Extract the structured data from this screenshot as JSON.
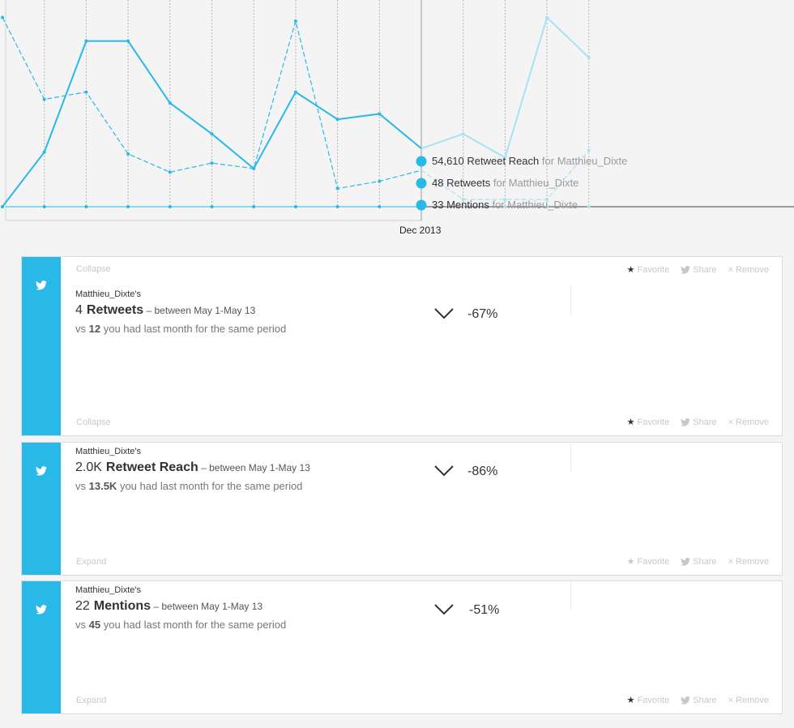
{
  "chart": {
    "x_label": "Dec 2013",
    "tooltip": [
      {
        "value": "54,610",
        "metric": "Retweet Reach",
        "for_text": "for Matthieu_Dixte"
      },
      {
        "value": "48",
        "metric": "Retweets",
        "for_text": "for Matthieu_Dixte"
      },
      {
        "value": "33",
        "metric": "Mentions",
        "for_text": "for Matthieu_Dixte"
      }
    ],
    "colors": {
      "line": "#29b9e8",
      "faded": "#a6e2f5",
      "axis": "#444444",
      "grid": "#b5b5b5"
    }
  },
  "chart_data": {
    "type": "line",
    "x_index": [
      0,
      1,
      2,
      3,
      4,
      5,
      6,
      7,
      8,
      9,
      10,
      11,
      12,
      13,
      14
    ],
    "highlight_index": 10,
    "series": [
      {
        "style": "solid",
        "values": [
          0,
          30,
          91,
          91,
          57,
          40,
          21,
          63,
          48,
          51,
          32,
          40,
          27,
          104,
          82
        ]
      },
      {
        "style": "dashed",
        "values": [
          104,
          59,
          63,
          29,
          19,
          24,
          21,
          102,
          10,
          14,
          20,
          4,
          4,
          4,
          31
        ]
      },
      {
        "style": "flat",
        "values": [
          0,
          0,
          0,
          0,
          0,
          0,
          0,
          0,
          0,
          0,
          0,
          0,
          0,
          0,
          0
        ]
      }
    ],
    "ylim": [
      0,
      110
    ]
  },
  "cards": [
    {
      "top_link": "Collapse",
      "bottom_link": "Collapse",
      "owner": "Matthieu_Dixte's",
      "value": "4",
      "metric": "Retweets",
      "range": "– between May 1-May 13",
      "vs_prefix": "vs",
      "vs_value": "12",
      "vs_suffix": "you had last month for the same period",
      "change": "-67%",
      "actions": {
        "favorite": "Favorite",
        "share": "Share",
        "remove": "Remove"
      }
    },
    {
      "bottom_link": "Expand",
      "owner": "Matthieu_Dixte's",
      "value": "2.0K",
      "metric": "Retweet Reach",
      "range": "– between May 1-May 13",
      "vs_prefix": "vs",
      "vs_value": "13.5K",
      "vs_suffix": "you had last month for the same period",
      "change": "-86%",
      "actions": {
        "favorite": "Favorite",
        "share": "Share",
        "remove": "Remove"
      }
    },
    {
      "bottom_link": "Expand",
      "owner": "Matthieu_Dixte's",
      "value": "22",
      "metric": "Mentions",
      "range": "– between May 1-May 13",
      "vs_prefix": "vs",
      "vs_value": "45",
      "vs_suffix": "you had last month for the same period",
      "change": "-51%",
      "actions": {
        "favorite": "Favorite",
        "share": "Share",
        "remove": "Remove"
      }
    }
  ],
  "icons": {
    "card_icon": "twitter-bird-icon",
    "star": "star-icon",
    "share": "twitter-share-icon",
    "remove": "close-icon",
    "chevron": "chevron-down-icon"
  }
}
